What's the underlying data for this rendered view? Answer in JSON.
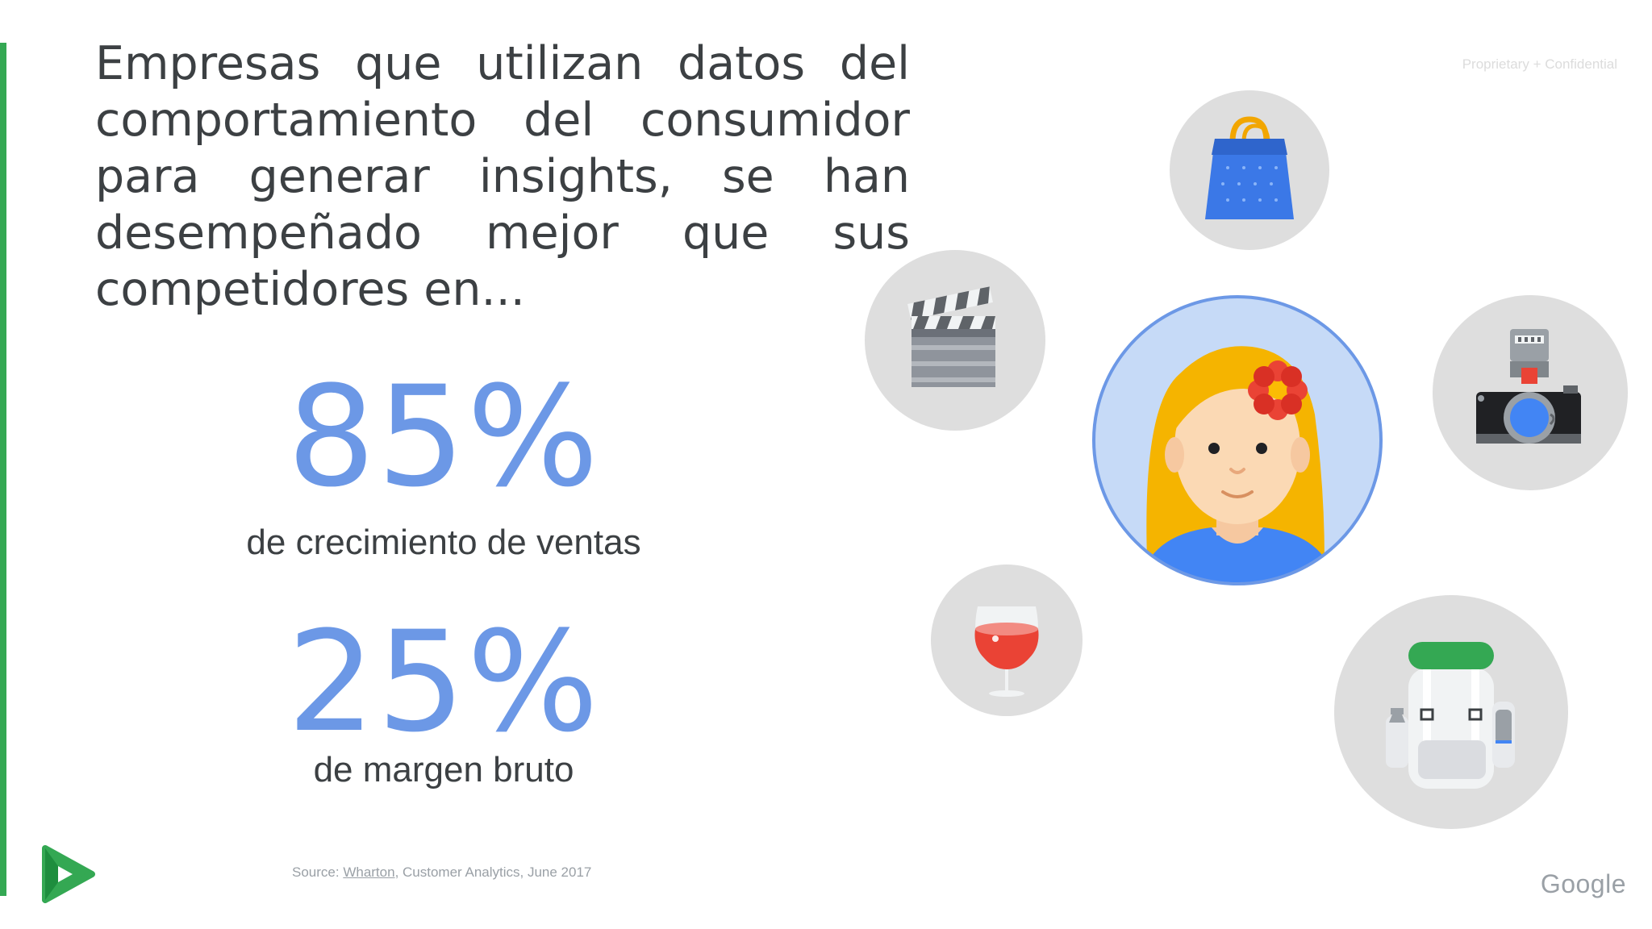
{
  "headline": "Empresas que utilizan datos del comportamiento del consumidor para generar insights, se han desempeñado mejor que sus competidores en...",
  "confidential": "Proprietary + Confidential",
  "stats": [
    {
      "value": "85%",
      "label": "de crecimiento de ventas"
    },
    {
      "value": "25%",
      "label": "de margen bruto"
    }
  ],
  "source": {
    "prefix": "Source: ",
    "link_text": "Wharton",
    "suffix": ", Customer Analytics, June 2017"
  },
  "brand": {
    "wordmark": "Google"
  },
  "icons": [
    "play-logo-icon",
    "shopping-bag-icon",
    "clapperboard-icon",
    "woman-avatar-icon",
    "camera-icon",
    "wine-glass-icon",
    "backpack-icon"
  ],
  "colors": {
    "accent": "#34a853",
    "stat_blue": "#6c98e6",
    "bubble_grey": "#dedede",
    "avatar_bg": "#c6daf7"
  }
}
